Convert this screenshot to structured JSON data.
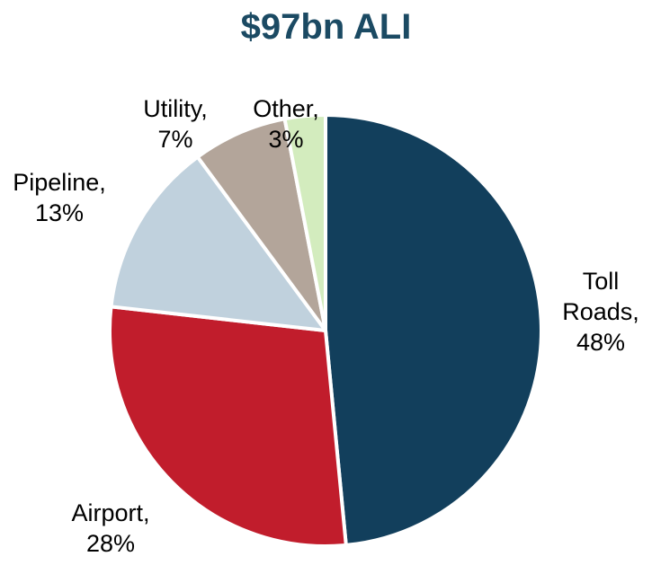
{
  "chart_data": {
    "type": "pie",
    "title": "$97bn ALI",
    "start_angle_deg": 0,
    "direction": "clockwise",
    "slices": [
      {
        "name": "Toll Roads",
        "value": 48,
        "display": "48%",
        "color": "#123f5c",
        "label_lines": [
          "Toll",
          "Roads,",
          "48%"
        ]
      },
      {
        "name": "Airport",
        "value": 28,
        "display": "28%",
        "color": "#c11d2c",
        "label_lines": [
          "Airport,",
          "28%"
        ]
      },
      {
        "name": "Pipeline",
        "value": 13,
        "display": "13%",
        "color": "#c0d1dd",
        "label_lines": [
          "Pipeline,",
          "13%"
        ]
      },
      {
        "name": "Utility",
        "value": 7,
        "display": "7%",
        "color": "#b3a59a",
        "label_lines": [
          "Utility,",
          "7%"
        ]
      },
      {
        "name": "Other",
        "value": 3,
        "display": "3%",
        "color": "#d3ecbe",
        "label_lines": [
          "Other,",
          "3%"
        ]
      }
    ],
    "legend": "none",
    "data_labels": "outside"
  }
}
